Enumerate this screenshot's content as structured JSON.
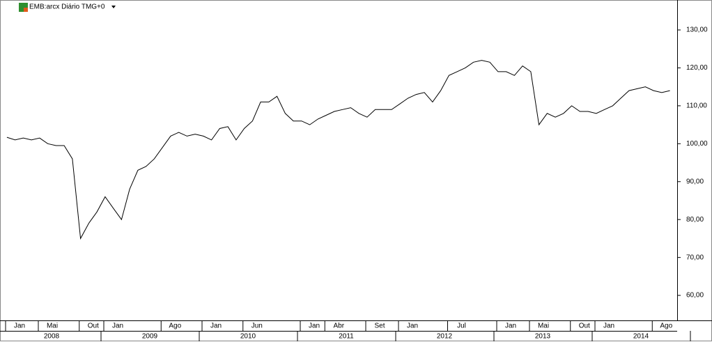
{
  "chart_data": {
    "type": "line",
    "title": "EMB:arcx Diário TMG+0",
    "x": [
      "2008-01",
      "2008-02",
      "2008-03",
      "2008-04",
      "2008-05",
      "2008-06",
      "2008-07",
      "2008-08",
      "2008-09",
      "2008-10",
      "2008-11",
      "2008-12",
      "2009-01",
      "2009-02",
      "2009-03",
      "2009-04",
      "2009-05",
      "2009-06",
      "2009-07",
      "2009-08",
      "2009-09",
      "2009-10",
      "2009-11",
      "2009-12",
      "2010-01",
      "2010-02",
      "2010-03",
      "2010-04",
      "2010-05",
      "2010-06",
      "2010-07",
      "2010-08",
      "2010-09",
      "2010-10",
      "2010-11",
      "2010-12",
      "2011-01",
      "2011-02",
      "2011-03",
      "2011-04",
      "2011-05",
      "2011-06",
      "2011-07",
      "2011-08",
      "2011-09",
      "2011-10",
      "2011-11",
      "2011-12",
      "2012-01",
      "2012-02",
      "2012-03",
      "2012-04",
      "2012-05",
      "2012-06",
      "2012-07",
      "2012-08",
      "2012-09",
      "2012-10",
      "2012-11",
      "2012-12",
      "2013-01",
      "2013-02",
      "2013-03",
      "2013-04",
      "2013-05",
      "2013-06",
      "2013-07",
      "2013-08",
      "2013-09",
      "2013-10",
      "2013-11",
      "2013-12",
      "2014-01",
      "2014-02",
      "2014-03",
      "2014-04",
      "2014-05",
      "2014-06",
      "2014-07",
      "2014-08",
      "2014-09",
      "2014-10"
    ],
    "series": [
      {
        "color": "#000000",
        "values": [
          101.7,
          101,
          101.5,
          101,
          101.5,
          100,
          99.5,
          99.5,
          96,
          75,
          79,
          82,
          86,
          83,
          80,
          88,
          93,
          94,
          96,
          99,
          102,
          103,
          102,
          102.5,
          102,
          101,
          104,
          104.5,
          101,
          104,
          106,
          111,
          111,
          112.5,
          108,
          106,
          106,
          105,
          106.5,
          107.5,
          108.5,
          109,
          109.5,
          108,
          107,
          109,
          109,
          109,
          110.5,
          112,
          113,
          113.5,
          111,
          114,
          118,
          119,
          120,
          121.5,
          122,
          121.5,
          119,
          119,
          118,
          120.5,
          119,
          105,
          108,
          107,
          108,
          110,
          108.5,
          108.5,
          108,
          109,
          110,
          112,
          114,
          114.5,
          115,
          114,
          113.5,
          114
        ]
      }
    ],
    "ylim": [
      53.4,
      137.9
    ],
    "yticks": [
      {
        "value": 60,
        "label": "60,00"
      },
      {
        "value": 70,
        "label": "70,00"
      },
      {
        "value": 80,
        "label": "80,00"
      },
      {
        "value": 90,
        "label": "90,00"
      },
      {
        "value": 100,
        "label": "100,00"
      },
      {
        "value": 110,
        "label": "110,00"
      },
      {
        "value": 120,
        "label": "120,00"
      },
      {
        "value": 130,
        "label": "130,00"
      }
    ],
    "xticks": [
      {
        "value": "2008-01",
        "label": "Jan"
      },
      {
        "value": "2008-05",
        "label": "Mai"
      },
      {
        "value": "2008-10",
        "label": "Out"
      },
      {
        "value": "2009-01",
        "label": "Jan"
      },
      {
        "value": "2009-08",
        "label": "Ago"
      },
      {
        "value": "2010-01",
        "label": "Jan"
      },
      {
        "value": "2010-06",
        "label": "Jun"
      },
      {
        "value": "2011-01",
        "label": "Jan"
      },
      {
        "value": "2011-04",
        "label": "Abr"
      },
      {
        "value": "2011-09",
        "label": "Set"
      },
      {
        "value": "2012-01",
        "label": "Jan"
      },
      {
        "value": "2012-07",
        "label": "Jul"
      },
      {
        "value": "2013-01",
        "label": "Jan"
      },
      {
        "value": "2013-05",
        "label": "Mai"
      },
      {
        "value": "2013-10",
        "label": "Out"
      },
      {
        "value": "2014-01",
        "label": "Jan"
      },
      {
        "value": "2014-08",
        "label": "Ago"
      }
    ],
    "years": [
      "2008",
      "2009",
      "2010",
      "2011",
      "2012",
      "2013",
      "2014"
    ]
  }
}
